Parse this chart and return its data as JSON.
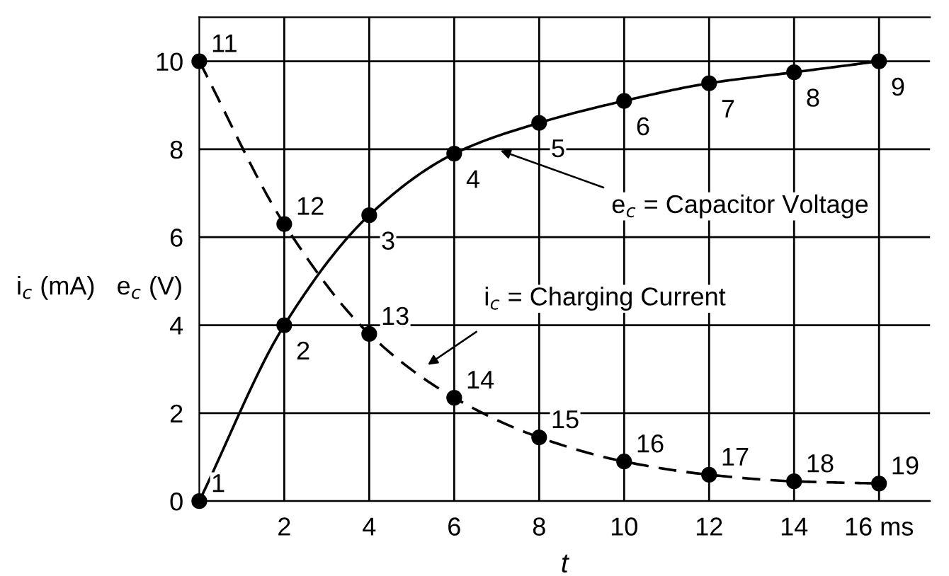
{
  "chart_data": {
    "type": "line",
    "xlabel": "t",
    "ylabel": "i$_{c}$ (mA)   e$_{c}$ (V)",
    "x": [
      0,
      2,
      4,
      6,
      8,
      10,
      12,
      14,
      16
    ],
    "series": [
      {
        "color": "#000000",
        "line_style": "solid",
        "values": [
          0,
          4,
          6.5,
          7.9,
          8.6,
          9.1,
          9.5,
          9.75,
          10
        ]
      },
      {
        "color": "#000000",
        "line_style": "dashed",
        "values": [
          10,
          6.3,
          3.8,
          2.35,
          1.45,
          0.9,
          0.6,
          0.45,
          0.4
        ]
      }
    ],
    "marker": "circle",
    "xlim": [
      0,
      17.2
    ],
    "ylim": [
      0,
      11
    ],
    "xticks": [
      2,
      4,
      6,
      8,
      10,
      12,
      14,
      {
        "value": 16,
        "label": "16 ms"
      }
    ],
    "yticks": [
      0,
      2,
      4,
      6,
      8,
      10
    ],
    "grid": true,
    "annotations": [
      {
        "text": "1",
        "x": 0,
        "y": 0
      },
      {
        "text": "2",
        "x": 2,
        "y": 4
      },
      {
        "text": "3",
        "x": 4,
        "y": 6.5
      },
      {
        "text": "4",
        "x": 6,
        "y": 7.9
      },
      {
        "text": "5",
        "x": 8,
        "y": 8.6
      },
      {
        "text": "6",
        "x": 10,
        "y": 9.1
      },
      {
        "text": "7",
        "x": 12,
        "y": 9.5
      },
      {
        "text": "8",
        "x": 14,
        "y": 9.75
      },
      {
        "text": "9",
        "x": 16,
        "y": 10
      },
      {
        "text": "11",
        "x": 0,
        "y": 10
      },
      {
        "text": "12",
        "x": 2,
        "y": 6.3
      },
      {
        "text": "13",
        "x": 4,
        "y": 3.8
      },
      {
        "text": "14",
        "x": 6,
        "y": 2.35
      },
      {
        "text": "15",
        "x": 8,
        "y": 1.45
      },
      {
        "text": "16",
        "x": 10,
        "y": 0.9
      },
      {
        "text": "17",
        "x": 12,
        "y": 0.6
      },
      {
        "text": "18",
        "x": 14,
        "y": 0.45
      },
      {
        "text": "19",
        "x": 16,
        "y": 0.4
      },
      "e$_{c}$ = Capacitor Voltage",
      "i$_{c}$ = Charging Current"
    ]
  }
}
